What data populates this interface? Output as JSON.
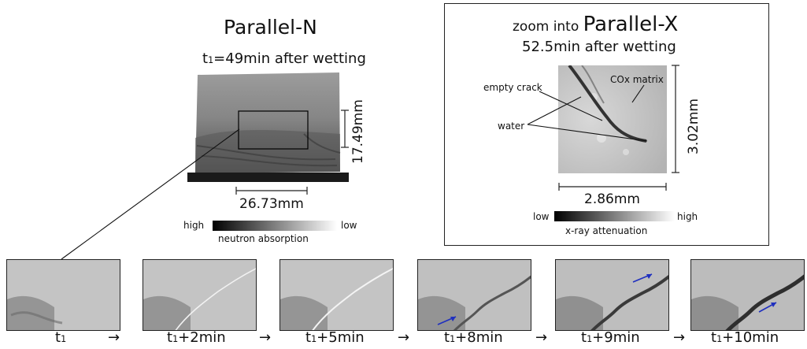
{
  "parallel_n": {
    "title": "Parallel-N",
    "time_prefix": "t",
    "time_sub": "1",
    "time_suffix": "=49min after wetting",
    "dim_vertical": "17.49mm",
    "dim_horizontal": "26.73mm",
    "scale": {
      "high": "high",
      "low": "low",
      "label": "neutron absorption"
    }
  },
  "parallel_x": {
    "title_prefix": "zoom into ",
    "title_main": "Parallel-X",
    "subtitle": "52.5min after wetting",
    "label_empty_crack": "empty crack",
    "label_cox_matrix": "COx matrix",
    "label_water": "water",
    "dim_vertical": "3.02mm",
    "dim_horizontal": "2.86mm",
    "scale": {
      "low": "low",
      "high": "high",
      "label": "x-ray attenuation"
    }
  },
  "timeline": [
    {
      "base": "t",
      "sub": "1",
      "suffix": ""
    },
    {
      "base": "t",
      "sub": "1",
      "suffix": "+2min"
    },
    {
      "base": "t",
      "sub": "1",
      "suffix": "+5min"
    },
    {
      "base": "t",
      "sub": "1",
      "suffix": "+8min"
    },
    {
      "base": "t",
      "sub": "1",
      "suffix": "+9min"
    },
    {
      "base": "t",
      "sub": "1",
      "suffix": "+10min"
    }
  ],
  "arrow_glyph": "→",
  "colors": {
    "marker_arrow": "#1f2fbf",
    "frame": "#222222"
  }
}
